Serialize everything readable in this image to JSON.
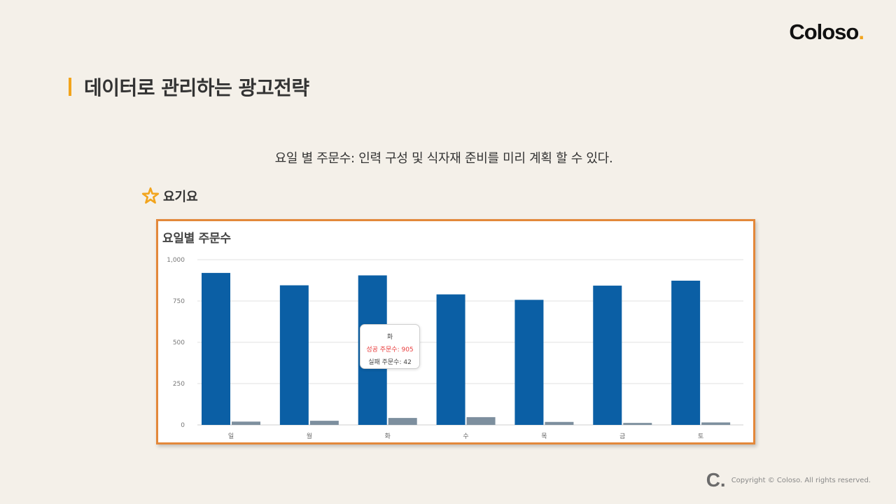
{
  "brand": {
    "logo_text": "Coloso",
    "logo_dot": ".",
    "accent_color": "#f2a41c"
  },
  "slide": {
    "title": "데이터로 관리하는 광고전략",
    "subtitle": "요일 별 주문수:  인력 구성 및 식자재 준비를 미리 계획 할 수 있다.",
    "app_label": "요기요",
    "app_icon": "star-icon"
  },
  "footer": {
    "logo": "C.",
    "copyright": "Copyright © Coloso. All rights reserved."
  },
  "tooltip": {
    "title": "화",
    "success_line": "성공 주문수: 905",
    "fail_line": "실패 주문수: 42"
  },
  "chart_data": {
    "type": "bar",
    "title": "요일별 주문수",
    "categories": [
      "일",
      "월",
      "화",
      "수",
      "목",
      "금",
      "토"
    ],
    "series": [
      {
        "values": [
          920,
          845,
          905,
          790,
          757,
          843,
          873
        ],
        "color": "#0b5fa5"
      },
      {
        "values": [
          20,
          25,
          42,
          47,
          18,
          12,
          15
        ],
        "color": "#7d8f9e"
      }
    ],
    "ylim": [
      0,
      1000
    ],
    "yticks": [
      0,
      250,
      500,
      750,
      1000
    ],
    "ytick_labels": [
      "0",
      "250",
      "500",
      "750",
      "1,000"
    ],
    "grid": true,
    "legend": "none"
  }
}
